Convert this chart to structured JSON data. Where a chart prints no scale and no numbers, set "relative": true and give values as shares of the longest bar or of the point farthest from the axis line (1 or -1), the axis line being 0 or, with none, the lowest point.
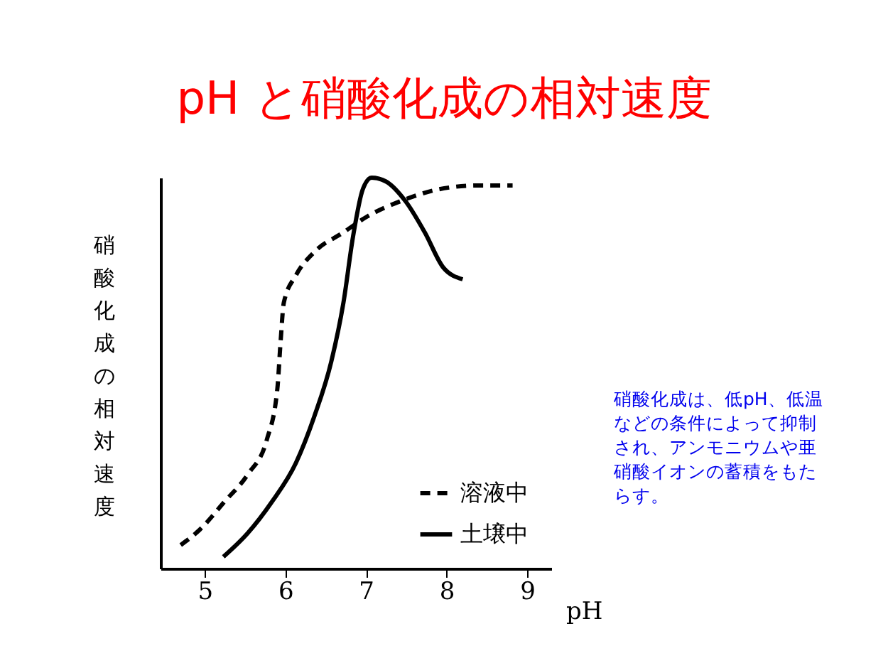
{
  "chart_data": {
    "type": "line",
    "title": "pH と硝酸化成の相対速度",
    "xlabel": "pH",
    "ylabel": "硝酸化成の相対速度",
    "relative": true,
    "xlim": [
      4.45,
      9.3
    ],
    "xticks": [
      5,
      6,
      7,
      8,
      9
    ],
    "legend": "bottom right",
    "annotations": [
      "硝酸化成は、低pH、低温などの条件によって抑制され、アンモニウムや亜硝酸イオンの蓄積をもたらす。"
    ],
    "series": [
      {
        "name": "溶液中",
        "color": "#000000",
        "line_style": "dashed",
        "x": [
          4.7,
          4.94,
          5.24,
          5.53,
          5.77,
          5.9,
          5.94,
          5.98,
          6.13,
          6.36,
          6.72,
          7.01,
          7.43,
          7.9,
          8.38,
          8.82
        ],
        "values": [
          0.06,
          0.1,
          0.17,
          0.24,
          0.33,
          0.46,
          0.58,
          0.68,
          0.75,
          0.81,
          0.86,
          0.9,
          0.94,
          0.97,
          0.98,
          0.98
        ]
      },
      {
        "name": "土壌中",
        "color": "#000000",
        "line_style": "solid",
        "x": [
          5.23,
          5.53,
          5.83,
          6.13,
          6.36,
          6.57,
          6.72,
          6.84,
          6.96,
          7.07,
          7.25,
          7.49,
          7.73,
          7.96,
          8.2
        ],
        "values": [
          0.03,
          0.09,
          0.17,
          0.27,
          0.39,
          0.53,
          0.68,
          0.85,
          0.97,
          1.0,
          0.99,
          0.94,
          0.86,
          0.77,
          0.74
        ]
      }
    ]
  }
}
